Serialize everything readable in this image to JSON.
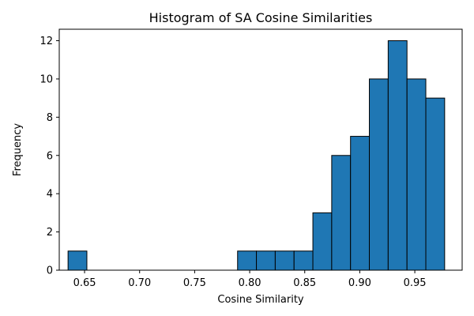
{
  "chart_data": {
    "type": "bar",
    "title": "Histogram of SA Cosine Similarities",
    "xlabel": "Cosine Similarity",
    "ylabel": "Frequency",
    "xlim": [
      0.627,
      0.993
    ],
    "ylim": [
      0,
      12.6
    ],
    "x_ticks": [
      0.65,
      0.7,
      0.75,
      0.8,
      0.85,
      0.9,
      0.95
    ],
    "x_tick_labels": [
      "0.65",
      "0.70",
      "0.75",
      "0.80",
      "0.85",
      "0.90",
      "0.95"
    ],
    "y_ticks": [
      0,
      2,
      4,
      6,
      8,
      10,
      12
    ],
    "y_tick_labels": [
      "0",
      "2",
      "4",
      "6",
      "8",
      "10",
      "12"
    ],
    "bin_width": 0.0171,
    "bins": [
      {
        "start": 0.635,
        "count": 1
      },
      {
        "start": 0.789,
        "count": 1
      },
      {
        "start": 0.8061,
        "count": 1
      },
      {
        "start": 0.8232,
        "count": 1
      },
      {
        "start": 0.8403,
        "count": 1
      },
      {
        "start": 0.8574,
        "count": 3
      },
      {
        "start": 0.8745,
        "count": 6
      },
      {
        "start": 0.8916,
        "count": 7
      },
      {
        "start": 0.9087,
        "count": 10
      },
      {
        "start": 0.9258,
        "count": 12
      },
      {
        "start": 0.9429,
        "count": 10
      },
      {
        "start": 0.96,
        "count": 9
      }
    ],
    "bar_color": "#1f77b4",
    "edge_color": "#000000",
    "grid": false,
    "legend": "none"
  }
}
